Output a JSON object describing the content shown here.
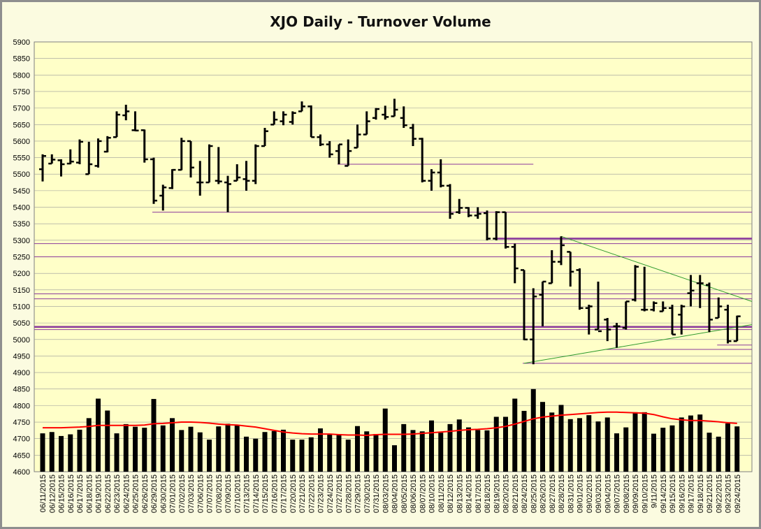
{
  "chart_data": {
    "type": "ohlc-bar",
    "title": "XJO Daily - Turnover Volume",
    "ylim": [
      4600,
      5900
    ],
    "ytick_step": 50,
    "grid": "horizontal",
    "legend": "none",
    "colors": {
      "background": "#fbfbe0",
      "price_bars": "#000000",
      "volume_bars": "#000000",
      "volume_average": "#ff0000",
      "support_resistance": "#8b3a9c",
      "trendlines": "#2f9b2f",
      "gridline": "#9a9a9a"
    },
    "dates": [
      "06/11/2015",
      "06/12/2015",
      "06/15/2015",
      "06/16/2015",
      "06/17/2015",
      "06/18/2015",
      "06/19/2015",
      "06/22/2015",
      "06/23/2015",
      "06/24/2015",
      "06/25/2015",
      "06/26/2015",
      "06/29/2015",
      "06/30/2015",
      "07/01/2015",
      "07/02/2015",
      "07/03/2015",
      "07/06/2015",
      "07/07/2015",
      "07/08/2015",
      "07/09/2015",
      "07/10/2015",
      "07/13/2015",
      "07/14/2015",
      "07/15/2015",
      "07/16/2015",
      "07/17/2015",
      "07/20/2015",
      "07/21/2015",
      "07/22/2015",
      "07/23/2015",
      "07/24/2015",
      "07/27/2015",
      "07/28/2015",
      "07/29/2015",
      "07/30/2015",
      "07/31/2015",
      "08/03/2015",
      "08/04/2015",
      "08/05/2015",
      "08/06/2015",
      "08/07/2015",
      "08/10/2015",
      "08/11/2015",
      "08/12/2015",
      "08/13/2015",
      "08/14/2015",
      "08/17/2015",
      "08/18/2015",
      "08/19/2015",
      "08/20/2015",
      "08/21/2015",
      "08/24/2015",
      "08/25/2015",
      "08/26/2015",
      "08/27/2015",
      "08/28/2015",
      "08/31/2015",
      "09/01/2015",
      "09/02/2015",
      "09/03/2015",
      "09/04/2015",
      "09/07/2015",
      "09/08/2015",
      "09/09/2015",
      "09/10/2015",
      "09/11/2015",
      "09/14/2015",
      "09/15/2015",
      "09/16/2015",
      "09/17/2015",
      "09/18/2015",
      "09/21/2015",
      "09/22/2015",
      "09/23/2015",
      "09/24/2015"
    ],
    "x_labels": [
      "06/11/2015",
      "06/12/2015",
      "06/15/2015",
      "06/16/2015",
      "06/17/2015",
      "06/18/2015",
      "06/19/2015",
      "06/22/2015",
      "06/23/2015",
      "06/24/2015",
      "06/25/2015",
      "06/26/2015",
      "06/29/2015",
      "06/30/2015",
      "07/01/2015",
      "07/02/2015",
      "07/03/2015",
      "07/06/2015",
      "07/07/2015",
      "07/08/2015",
      "07/09/2015",
      "07/10/2015",
      "07/13/2015",
      "07/14/2015",
      "07/15/2015",
      "07/16/2015",
      "07/17/2015",
      "07/20/2015",
      "07/21/2015",
      "07/22/2015",
      "07/23/2015",
      "07/24/2015",
      "07/27/2015",
      "07/28/2015",
      "07/29/2015",
      "07/30/2015",
      "07/31/2015",
      "08/03/2015",
      "08/04/2015",
      "08/05/2015",
      "08/06/2015",
      "08/07/2015",
      "08/10/2015",
      "08/11/2015",
      "08/12/2015",
      "08/13/2015",
      "08/14/2015",
      "08/17/2015",
      "08/18/2015",
      "08/19/2015",
      "08/20/2015",
      "08/21/2015",
      "08/24/2015",
      "08/25/2015",
      "08/26/2015",
      "08/27/2015",
      "08/28/2015",
      "08/31/2015",
      "09/01/2015",
      "09/02/2015",
      "09/03/2015",
      "09/04/2015",
      "09/07/2015",
      "09/08/2015",
      "09/09/2015",
      "09/10/2015",
      "9/11/2015",
      "09/14/2015",
      "09/15/2015",
      "09/16/2015",
      "09/17/2015",
      "09/18/2015",
      "09/21/2015",
      "09/22/2015",
      "09/23/2015",
      "09/24/2015"
    ],
    "ohlc": [
      [
        5515,
        5560,
        5478,
        5555
      ],
      [
        5532,
        5560,
        5532,
        5544
      ],
      [
        5542,
        5545,
        5493,
        5530
      ],
      [
        5532,
        5575,
        5530,
        5538
      ],
      [
        5535,
        5605,
        5530,
        5598
      ],
      [
        5500,
        5598,
        5500,
        5530
      ],
      [
        5525,
        5608,
        5520,
        5600
      ],
      [
        5568,
        5615,
        5566,
        5610
      ],
      [
        5612,
        5690,
        5612,
        5680
      ],
      [
        5678,
        5710,
        5663,
        5690
      ],
      [
        5633,
        5690,
        5630,
        5632
      ],
      [
        5633,
        5635,
        5535,
        5545
      ],
      [
        5545,
        5550,
        5410,
        5420
      ],
      [
        5435,
        5468,
        5390,
        5460
      ],
      [
        5458,
        5515,
        5455,
        5513
      ],
      [
        5513,
        5610,
        5512,
        5600
      ],
      [
        5600,
        5600,
        5490,
        5520
      ],
      [
        5475,
        5540,
        5435,
        5475
      ],
      [
        5475,
        5590,
        5475,
        5585
      ],
      [
        5480,
        5582,
        5470,
        5478
      ],
      [
        5475,
        5495,
        5385,
        5470
      ],
      [
        5480,
        5530,
        5480,
        5490
      ],
      [
        5485,
        5540,
        5450,
        5480
      ],
      [
        5480,
        5590,
        5470,
        5585
      ],
      [
        5585,
        5640,
        5585,
        5630
      ],
      [
        5650,
        5690,
        5650,
        5665
      ],
      [
        5660,
        5690,
        5648,
        5680
      ],
      [
        5658,
        5690,
        5650,
        5685
      ],
      [
        5690,
        5720,
        5690,
        5705
      ],
      [
        5705,
        5708,
        5612,
        5612
      ],
      [
        5612,
        5620,
        5585,
        5590
      ],
      [
        5590,
        5600,
        5550,
        5560
      ],
      [
        5570,
        5590,
        5530,
        5590
      ],
      [
        5525,
        5605,
        5525,
        5570
      ],
      [
        5580,
        5650,
        5580,
        5620
      ],
      [
        5620,
        5690,
        5620,
        5660
      ],
      [
        5670,
        5700,
        5665,
        5697
      ],
      [
        5680,
        5707,
        5665,
        5673
      ],
      [
        5675,
        5728,
        5675,
        5695
      ],
      [
        5670,
        5705,
        5640,
        5648
      ],
      [
        5640,
        5652,
        5585,
        5607
      ],
      [
        5607,
        5610,
        5475,
        5480
      ],
      [
        5480,
        5515,
        5450,
        5505
      ],
      [
        5505,
        5545,
        5460,
        5465
      ],
      [
        5465,
        5470,
        5365,
        5380
      ],
      [
        5385,
        5425,
        5380,
        5398
      ],
      [
        5398,
        5400,
        5370,
        5375
      ],
      [
        5375,
        5400,
        5365,
        5380
      ],
      [
        5382,
        5390,
        5300,
        5305
      ],
      [
        5305,
        5388,
        5300,
        5385
      ],
      [
        5385,
        5385,
        5275,
        5280
      ],
      [
        5280,
        5290,
        5170,
        5215
      ],
      [
        5210,
        5210,
        4998,
        5000
      ],
      [
        5000,
        5155,
        4925,
        5130
      ],
      [
        5135,
        5175,
        5040,
        5175
      ],
      [
        5170,
        5270,
        5170,
        5235
      ],
      [
        5235,
        5312,
        5225,
        5285
      ],
      [
        5265,
        5265,
        5160,
        5205
      ],
      [
        5210,
        5215,
        5090,
        5095
      ],
      [
        5095,
        5105,
        5015,
        5100
      ],
      [
        5030,
        5175,
        5030,
        5025
      ],
      [
        5060,
        5065,
        4995,
        5030
      ],
      [
        5040,
        5050,
        4975,
        5040
      ],
      [
        5035,
        5115,
        5030,
        5115
      ],
      [
        5120,
        5225,
        5115,
        5220
      ],
      [
        5090,
        5220,
        5085,
        5090
      ],
      [
        5090,
        5115,
        5085,
        5110
      ],
      [
        5085,
        5115,
        5085,
        5095
      ],
      [
        5095,
        5105,
        5015,
        5015
      ],
      [
        5075,
        5105,
        5015,
        5100
      ],
      [
        5140,
        5195,
        5100,
        5148
      ],
      [
        5170,
        5195,
        5095,
        5170
      ],
      [
        5165,
        5172,
        5022,
        5060
      ],
      [
        5065,
        5127,
        5065,
        5100
      ],
      [
        5090,
        5105,
        4988,
        4995
      ],
      [
        4995,
        5072,
        4995,
        5070
      ]
    ],
    "volume": [
      4716,
      4720,
      4708,
      4713,
      4727,
      4762,
      4821,
      4785,
      4716,
      4744,
      4736,
      4733,
      4820,
      4740,
      4762,
      4726,
      4736,
      4719,
      4697,
      4737,
      4745,
      4740,
      4706,
      4700,
      4720,
      4723,
      4727,
      4697,
      4697,
      4704,
      4731,
      4712,
      4714,
      4697,
      4738,
      4722,
      4714,
      4791,
      4680,
      4744,
      4726,
      4722,
      4755,
      4718,
      4744,
      4758,
      4734,
      4726,
      4725,
      4766,
      4766,
      4821,
      4784,
      4850,
      4811,
      4779,
      4802,
      4759,
      4762,
      4771,
      4752,
      4764,
      4716,
      4734,
      4780,
      4780,
      4715,
      4733,
      4740,
      4764,
      4770,
      4773,
      4718,
      4706,
      4746,
      4737
    ],
    "volume_average": [
      4733,
      4733,
      4733,
      4734,
      4735,
      4737,
      4740,
      4740,
      4740,
      4740,
      4740,
      4741,
      4745,
      4746,
      4748,
      4750,
      4750,
      4749,
      4747,
      4744,
      4742,
      4741,
      4738,
      4735,
      4730,
      4725,
      4720,
      4717,
      4715,
      4714,
      4714,
      4714,
      4712,
      4711,
      4711,
      4710,
      4712,
      4713,
      4713,
      4713,
      4714,
      4716,
      4718,
      4720,
      4722,
      4725,
      4727,
      4728,
      4730,
      4733,
      4737,
      4744,
      4752,
      4760,
      4765,
      4768,
      4771,
      4773,
      4775,
      4777,
      4779,
      4780,
      4780,
      4779,
      4778,
      4777,
      4773,
      4766,
      4760,
      4757,
      4755,
      4755,
      4753,
      4751,
      4748,
      4746
    ],
    "horizontal_lines": [
      {
        "y": 5385,
        "from": "06/29/2015",
        "to": "end",
        "thick": false
      },
      {
        "y": 5530,
        "from": "07/27/2015",
        "to": "08/25/2015",
        "thick": false
      },
      {
        "y": 5305,
        "from": "08/19/2015",
        "to": "end",
        "thick": true
      },
      {
        "y": 5290,
        "from": "start",
        "to": "end",
        "thick": false
      },
      {
        "y": 5250,
        "from": "start",
        "to": "end",
        "thick": false
      },
      {
        "y": 5138,
        "from": "start",
        "to": "end",
        "thick": false
      },
      {
        "y": 5123,
        "from": "start",
        "to": "end",
        "thick": false
      },
      {
        "y": 5038,
        "from": "start",
        "to": "end",
        "thick": true
      },
      {
        "y": 5030,
        "from": "start",
        "to": "end",
        "thick": false
      },
      {
        "y": 4983,
        "from": "09/22/2015",
        "to": "end",
        "thick": false
      },
      {
        "y": 4970,
        "from": "09/04/2015",
        "to": "end",
        "thick": false
      },
      {
        "y": 4928,
        "from": "08/24/2015",
        "to": "end",
        "thick": false
      }
    ],
    "trendlines": [
      {
        "from": [
          "08/28/2015",
          5312
        ],
        "to": [
          "end",
          5115
        ]
      },
      {
        "from": [
          "08/24/2015",
          4928
        ],
        "to": [
          "end",
          5045
        ]
      }
    ]
  }
}
